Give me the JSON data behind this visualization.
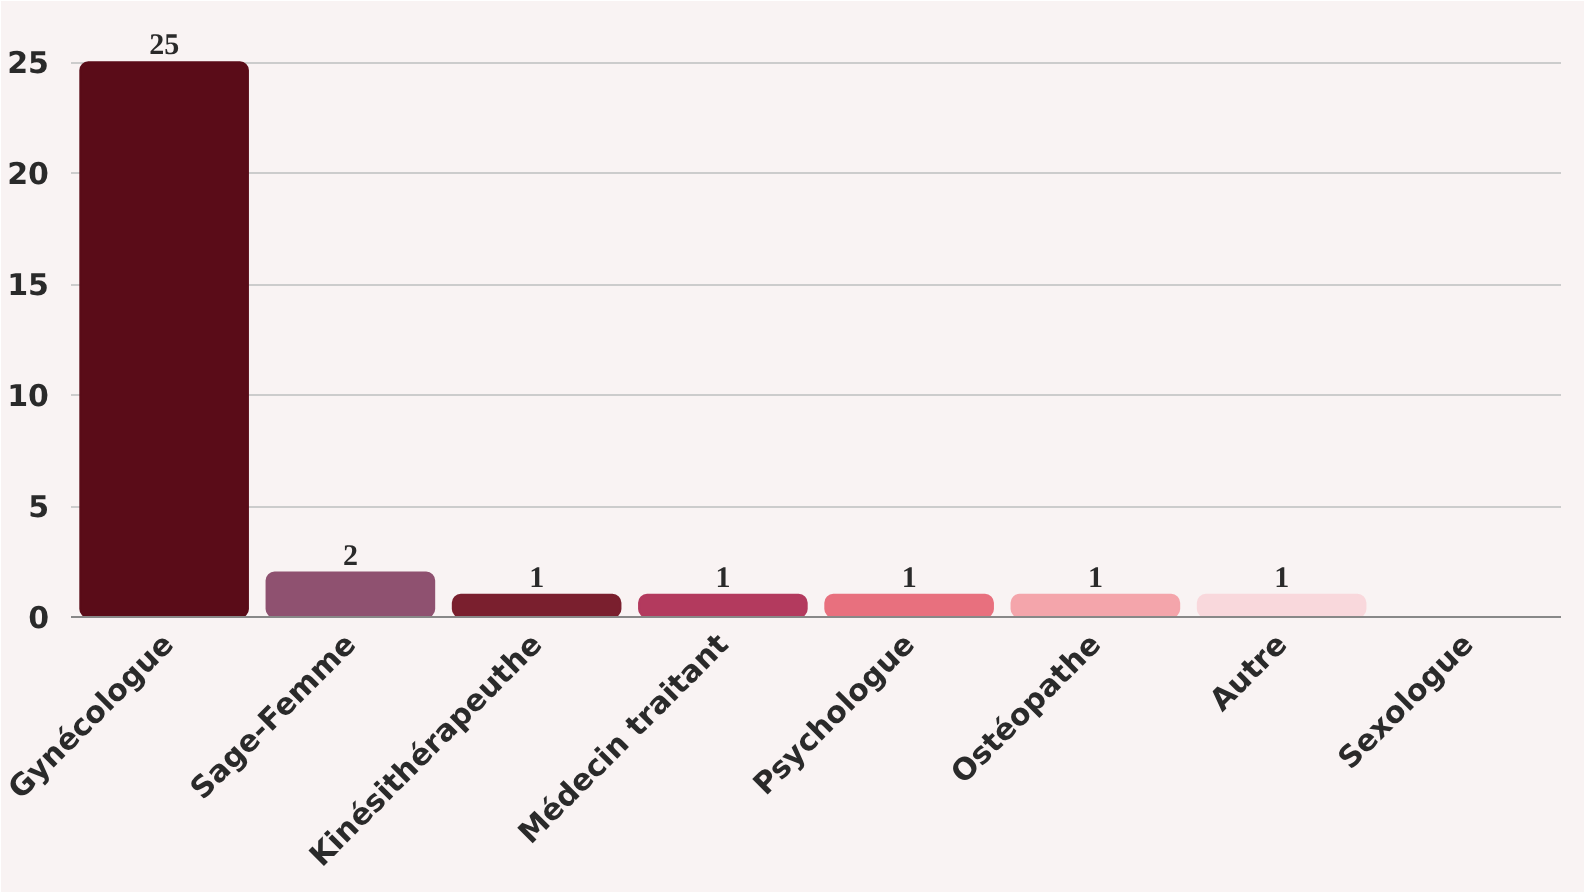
{
  "chart_data": {
    "type": "bar",
    "categories": [
      "Gynécologue",
      "Sage-Femme",
      "Kinésithérapeuthe",
      "Médecin traitant",
      "Psychologue",
      "Ostéopathe",
      "Autre",
      "Sexologue"
    ],
    "values": [
      25,
      2,
      1,
      1,
      1,
      1,
      1,
      0
    ],
    "colors": [
      "#5a0c18",
      "#8f5170",
      "#7a1f2e",
      "#b33a5e",
      "#e8707e",
      "#f4a5ab",
      "#f9d8dc",
      "#f9d8dc"
    ],
    "value_labels": [
      "25",
      "2",
      "1",
      "1",
      "1",
      "1",
      "1",
      null
    ],
    "ylim": [
      0,
      26.5
    ],
    "yticks": [
      0,
      5,
      10,
      15,
      20,
      25
    ],
    "grid": "y"
  }
}
